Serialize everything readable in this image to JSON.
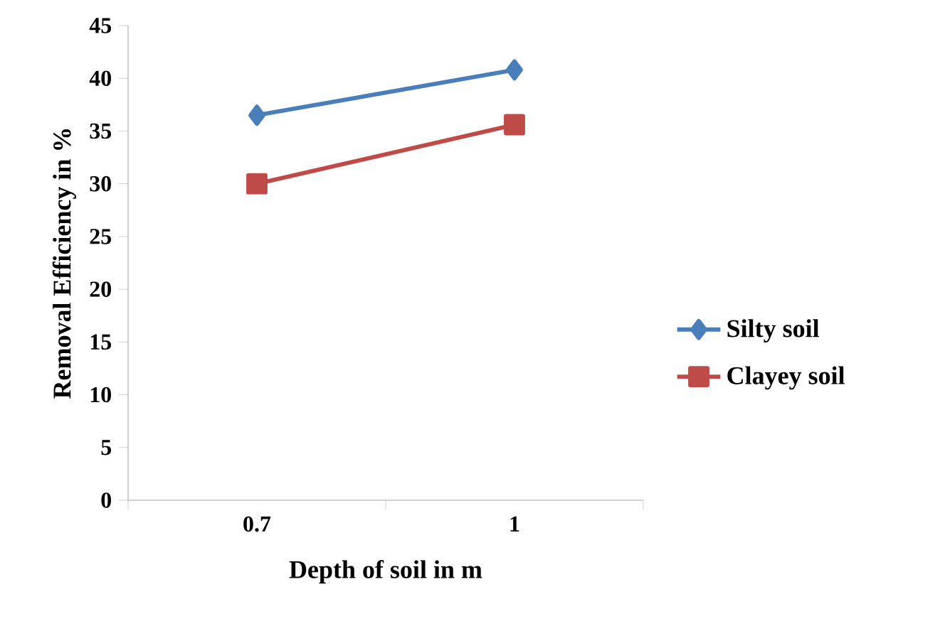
{
  "chart_data": {
    "type": "line",
    "xlabel": "Depth of soil in m",
    "ylabel": "Removal Efficiency in %",
    "categories": [
      "0.7",
      "1"
    ],
    "series": [
      {
        "name": "Silty soil",
        "color": "#4a7ebb",
        "marker": "diamond",
        "values": [
          36.5,
          40.8
        ]
      },
      {
        "name": "Clayey soil",
        "color": "#be4b48",
        "marker": "square",
        "values": [
          30.0,
          35.6
        ]
      }
    ],
    "ylim": [
      0,
      45
    ],
    "yticks": [
      0,
      5,
      10,
      15,
      20,
      25,
      30,
      35,
      40,
      45
    ],
    "legend": "right",
    "grid": false,
    "line_style": "solid"
  }
}
